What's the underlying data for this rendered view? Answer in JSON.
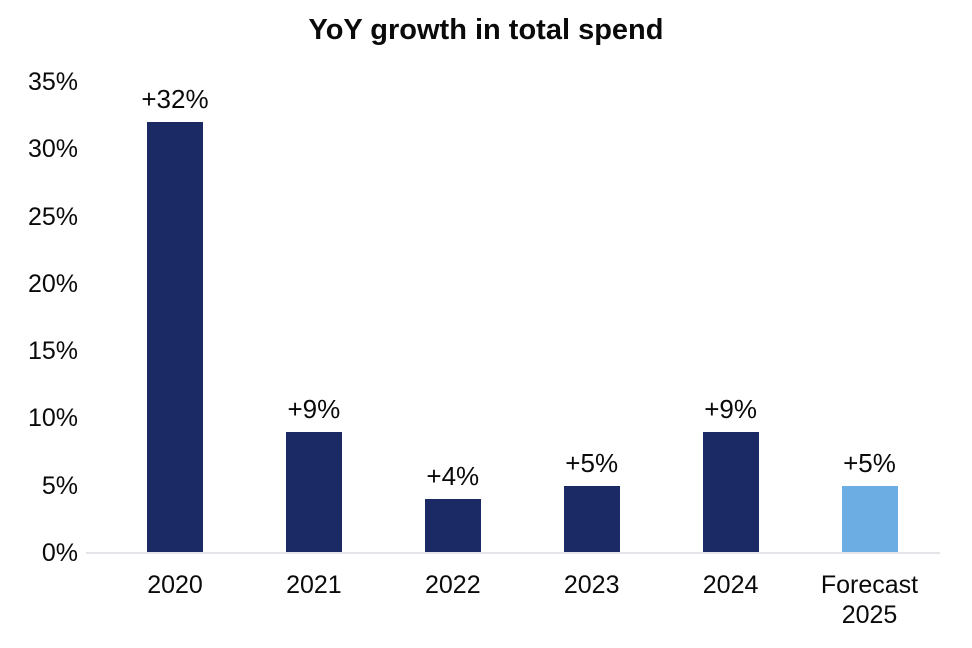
{
  "chart_data": {
    "type": "bar",
    "title": "YoY growth in total spend",
    "categories": [
      "2020",
      "2021",
      "2022",
      "2023",
      "2024",
      "Forecast 2025"
    ],
    "values": [
      32,
      9,
      4,
      5,
      9,
      5
    ],
    "data_labels": [
      "+32%",
      "+9%",
      "+4%",
      "+5%",
      "+9%",
      "+5%"
    ],
    "bar_colors": [
      "#1b2a64",
      "#1b2a64",
      "#1b2a64",
      "#1b2a64",
      "#1b2a64",
      "#6cade4"
    ],
    "xlabel": "",
    "ylabel": "",
    "ylim": [
      0,
      35
    ],
    "yticks": [
      0,
      5,
      10,
      15,
      20,
      25,
      30,
      35
    ],
    "ytick_labels": [
      "0%",
      "5%",
      "10%",
      "15%",
      "20%",
      "25%",
      "30%",
      "35%"
    ],
    "grid": false,
    "legend": false,
    "colors": {
      "bar_navy": "#1b2a64",
      "bar_forecast_light_blue": "#6cade4",
      "axis_line": "#e3e5e8",
      "text": "#0a0a0a",
      "background": "#ffffff"
    }
  }
}
